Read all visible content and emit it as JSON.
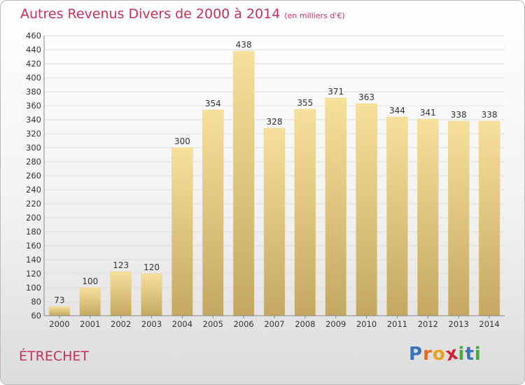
{
  "header": {
    "title": "Autres Revenus Divers de 2000 à 2014",
    "subtitle": "(en milliers d'€)"
  },
  "footer": {
    "town": "ÉTRECHET",
    "brand": "Proxiti",
    "brand_letters": [
      {
        "char": "P",
        "color": "#3a73b8"
      },
      {
        "char": "r",
        "color": "#e06a1f"
      },
      {
        "char": "o",
        "color": "#e8a21d"
      },
      {
        "char": "x",
        "color": "#d2233a"
      },
      {
        "char": "i",
        "color": "#4aa843"
      },
      {
        "char": "t",
        "color": "#3a73b8"
      },
      {
        "char": "i",
        "color": "#4aa843"
      }
    ]
  },
  "colors": {
    "title": "#c8305a",
    "bar_light": "#f7e09c",
    "bar_dark": "#c4a862",
    "grid": "#dddddd"
  },
  "chart_data": {
    "type": "bar",
    "title": "Autres Revenus Divers de 2000 à 2014",
    "subtitle": "(en milliers d'€)",
    "categories": [
      "2000",
      "2001",
      "2002",
      "2003",
      "2004",
      "2005",
      "2006",
      "2007",
      "2008",
      "2009",
      "2010",
      "2011",
      "2012",
      "2013",
      "2014"
    ],
    "values": [
      73,
      100,
      123,
      120,
      300,
      354,
      438,
      328,
      355,
      371,
      363,
      344,
      341,
      338,
      338
    ],
    "ylim": [
      60,
      460
    ],
    "ytick_step": 20,
    "grid": true,
    "data_labels": true
  }
}
